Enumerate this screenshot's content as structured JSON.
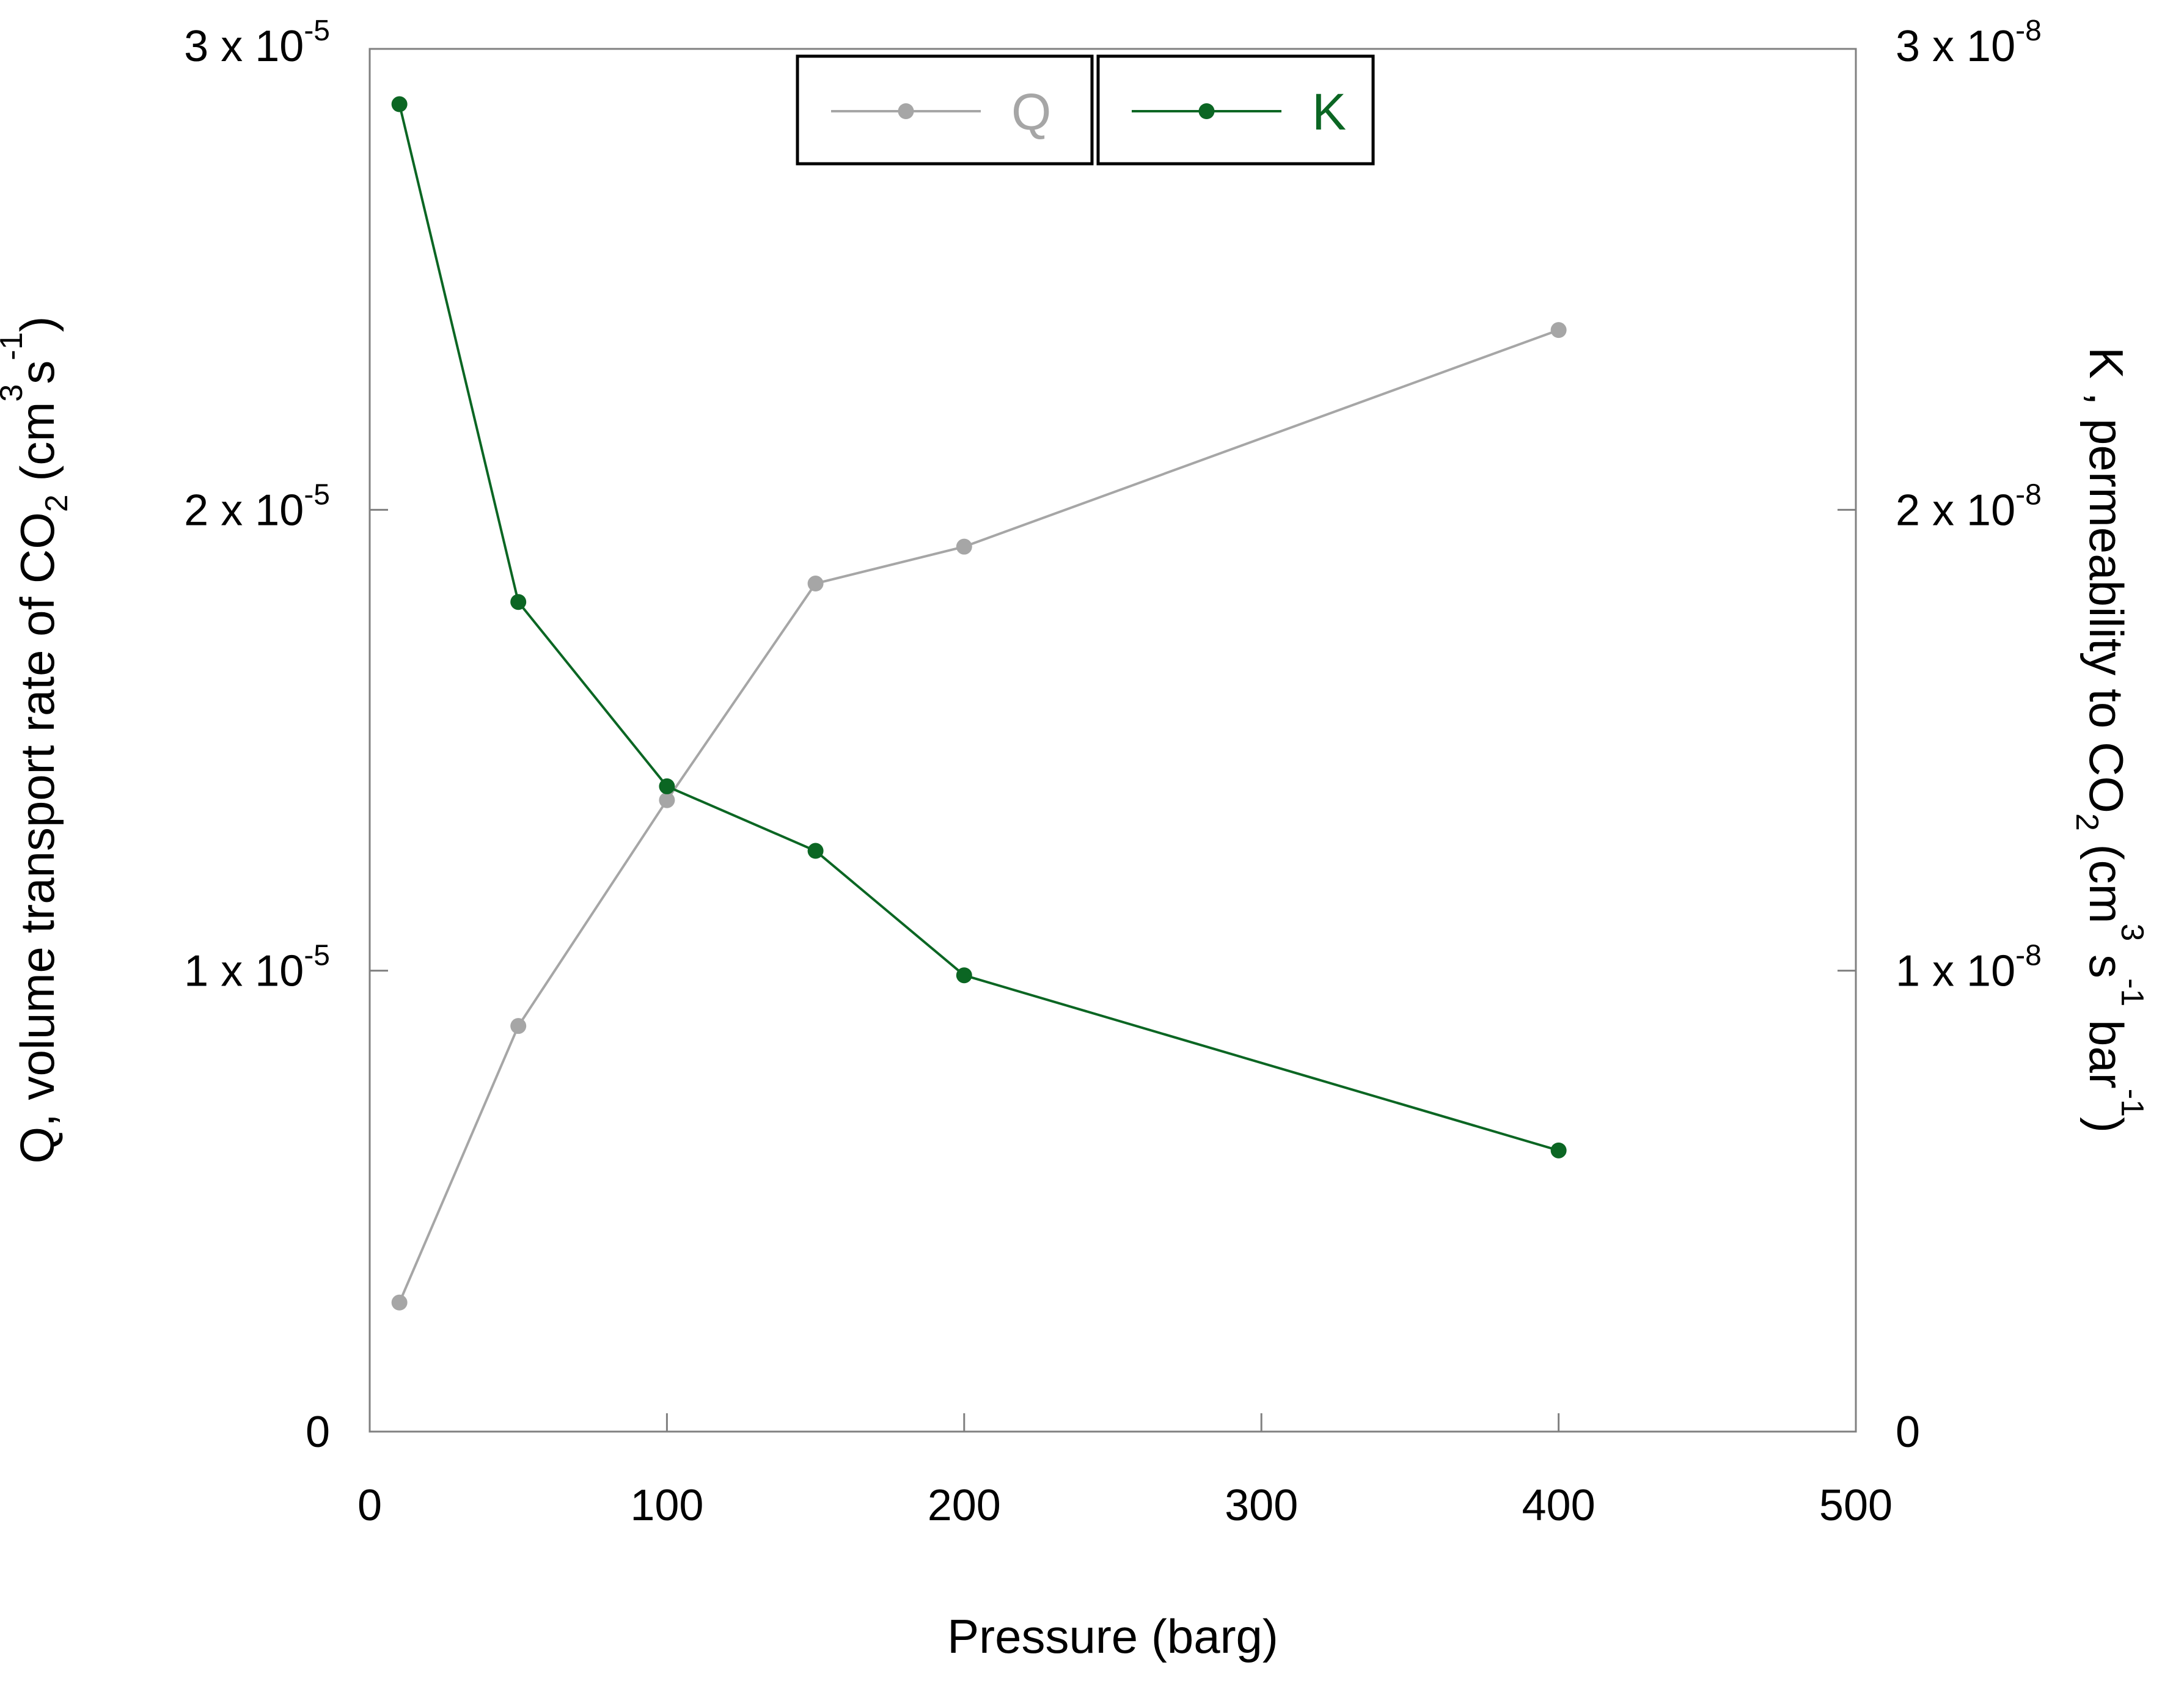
{
  "chart_data": {
    "type": "line",
    "title": "",
    "xlabel": "Pressure (barg)",
    "xlim": [
      0,
      500
    ],
    "x_ticks": [
      "0",
      "100",
      "200",
      "300",
      "400",
      "500"
    ],
    "x_tick_values": [
      0,
      100,
      200,
      300,
      400,
      500
    ],
    "left_axis": {
      "label_parts": [
        "Q, volume transport rate of CO",
        "2",
        " (cm",
        "3",
        "s",
        "-1",
        ")"
      ],
      "ylim": [
        0,
        3e-05
      ],
      "tick_values": [
        0,
        1e-05,
        2e-05,
        3e-05
      ],
      "ticks": [
        {
          "mantissa": "0",
          "exponent": ""
        },
        {
          "mantissa": "1 x 10",
          "exponent": "-5"
        },
        {
          "mantissa": "2 x 10",
          "exponent": "-5"
        },
        {
          "mantissa": "3 x 10",
          "exponent": "-5"
        }
      ]
    },
    "right_axis": {
      "label_parts": [
        "K , permeability to CO",
        "2",
        " (cm",
        "3",
        " s",
        "-1",
        " bar",
        "-1",
        ")"
      ],
      "ylim": [
        0,
        3e-08
      ],
      "tick_values": [
        0,
        1e-08,
        2e-08,
        3e-08
      ],
      "ticks": [
        {
          "mantissa": "0",
          "exponent": ""
        },
        {
          "mantissa": "1 x 10",
          "exponent": "-8"
        },
        {
          "mantissa": "2 x 10",
          "exponent": "-8"
        },
        {
          "mantissa": "3 x 10",
          "exponent": "-8"
        }
      ]
    },
    "x": [
      10,
      50,
      100,
      150,
      200,
      400
    ],
    "series": [
      {
        "name": "Q",
        "axis": "left",
        "color": "#a6a6a6",
        "values": [
          2.8e-06,
          8.8e-06,
          1.37e-05,
          1.84e-05,
          1.92e-05,
          2.39e-05
        ]
      },
      {
        "name": "K",
        "axis": "right",
        "color": "#0b6623",
        "values": [
          2.88e-08,
          1.8e-08,
          1.4e-08,
          1.26e-08,
          9.9e-09,
          6.1e-09
        ]
      }
    ],
    "legend_position": "top-center",
    "grid": false
  }
}
